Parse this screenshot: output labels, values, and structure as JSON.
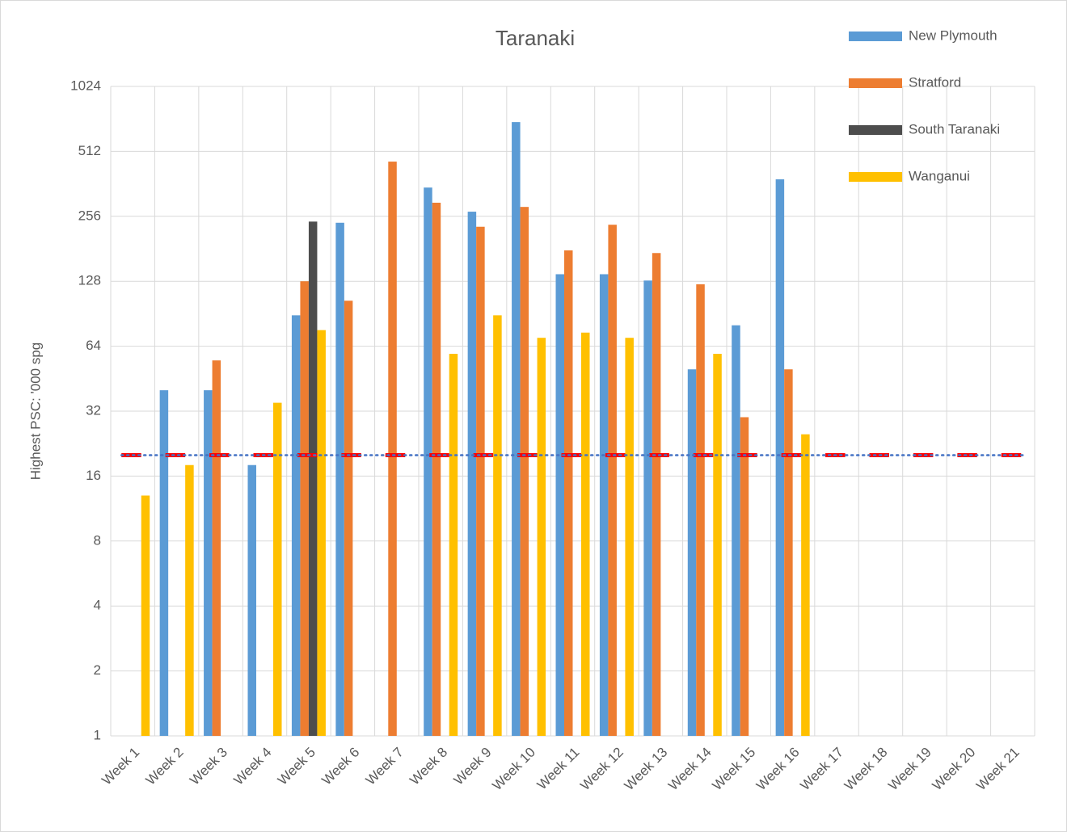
{
  "chart_data": {
    "type": "bar",
    "title": "Taranaki",
    "y_label": "Highest PSC: '000 spg",
    "categories": [
      "Week 1",
      "Week 2",
      "Week 3",
      "Week 4",
      "Week 5",
      "Week 6",
      "Week 7",
      "Week 8",
      "Week 9",
      "Week 10",
      "Week 11",
      "Week 12",
      "Week 13",
      "Week 14",
      "Week 15",
      "Week 16",
      "Week 17",
      "Week 18",
      "Week 19",
      "Week 20",
      "Week 21"
    ],
    "series": [
      {
        "name": "New Plymouth",
        "color": "#5b9bd5",
        "values": [
          null,
          40,
          40,
          18,
          89,
          239,
          null,
          348,
          269,
          700,
          138,
          138,
          129,
          50,
          80,
          380,
          null,
          null,
          null,
          null,
          null
        ]
      },
      {
        "name": "Stratford",
        "color": "#ed7d31",
        "values": [
          null,
          null,
          55,
          null,
          128,
          104,
          459,
          296,
          229,
          283,
          178,
          234,
          173,
          124,
          30,
          50,
          null,
          null,
          null,
          null,
          null
        ]
      },
      {
        "name": "South Taranaki",
        "color": "#4d4d4d",
        "values": [
          null,
          null,
          null,
          null,
          242,
          null,
          null,
          null,
          null,
          null,
          null,
          null,
          null,
          null,
          null,
          null,
          null,
          null,
          null,
          null,
          null
        ]
      },
      {
        "name": "Wanganui",
        "color": "#ffc000",
        "values": [
          13,
          18,
          null,
          35,
          76,
          null,
          null,
          59,
          89,
          70,
          74,
          70,
          null,
          59,
          null,
          25,
          null,
          null,
          null,
          null,
          null
        ]
      }
    ],
    "reference_line": {
      "value": 20,
      "color": "#ff0000",
      "dot_color": "#4472c4"
    },
    "ylim": [
      1,
      1024
    ],
    "yticks": [
      1,
      2,
      4,
      8,
      16,
      32,
      64,
      128,
      256,
      512,
      1024
    ],
    "log_scale": true,
    "log_base": 2,
    "grid": true,
    "legend": "top-right"
  }
}
